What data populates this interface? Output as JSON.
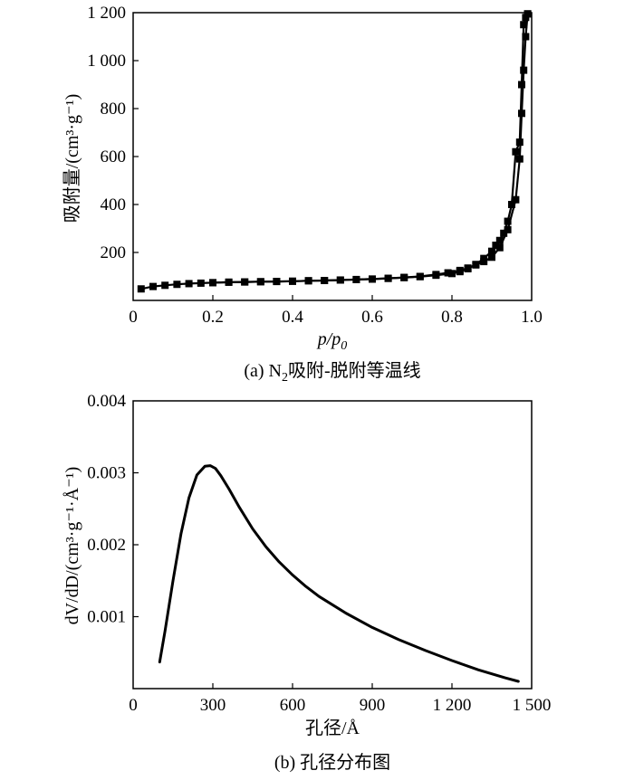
{
  "chart_data": [
    {
      "type": "line",
      "caption_prefix": "(a) N",
      "caption_sub": "2",
      "caption_suffix": "吸附-脱附等温线",
      "xlabel": "p/p",
      "xlabel_sub": "0",
      "ylabel": "吸附量/(cm³·g⁻¹)",
      "xlim": [
        0,
        1.0
      ],
      "ylim": [
        0,
        1200
      ],
      "x_ticks": [
        "0",
        "0.2",
        "0.4",
        "0.6",
        "0.8",
        "1.0"
      ],
      "y_ticks": [
        "200",
        "400",
        "600",
        "800",
        "1 000",
        "1 200"
      ],
      "grid": false,
      "series": [
        {
          "x": [
            0.02,
            0.05,
            0.08,
            0.11,
            0.14,
            0.17,
            0.2,
            0.24,
            0.28,
            0.32,
            0.36,
            0.4,
            0.44,
            0.48,
            0.52,
            0.56,
            0.6,
            0.64,
            0.68,
            0.72,
            0.76,
            0.79,
            0.82,
            0.84,
            0.86,
            0.88,
            0.9,
            0.92,
            0.94,
            0.96,
            0.97,
            0.975,
            0.98,
            0.985,
            0.99
          ],
          "y": [
            48,
            58,
            63,
            67,
            70,
            72,
            74,
            76,
            77,
            78,
            79,
            80,
            82,
            83,
            85,
            87,
            89,
            92,
            96,
            100,
            108,
            115,
            125,
            135,
            148,
            162,
            180,
            220,
            295,
            420,
            590,
            780,
            960,
            1100,
            1195
          ]
        },
        {
          "x": [
            0.99,
            0.985,
            0.98,
            0.975,
            0.97,
            0.96,
            0.95,
            0.94,
            0.93,
            0.92,
            0.91,
            0.9,
            0.88,
            0.86,
            0.84,
            0.82,
            0.8,
            0.76,
            0.72,
            0.68,
            0.64,
            0.6,
            0.56,
            0.52,
            0.48,
            0.44,
            0.4,
            0.36,
            0.32,
            0.28,
            0.24,
            0.2
          ],
          "y": [
            1195,
            1180,
            1150,
            900,
            660,
            620,
            400,
            330,
            280,
            250,
            230,
            205,
            175,
            150,
            132,
            120,
            112,
            105,
            99,
            95,
            92,
            89,
            87,
            85,
            83,
            82,
            80,
            79,
            78,
            77,
            76,
            74
          ]
        }
      ]
    },
    {
      "type": "line",
      "caption": "(b) 孔径分布图",
      "xlabel": "孔径/Å",
      "ylabel": "dV/dD/(cm³·g⁻¹·Å⁻¹)",
      "xlim": [
        0,
        1500
      ],
      "ylim": [
        0,
        0.004
      ],
      "x_ticks": [
        "0",
        "300",
        "600",
        "900",
        "1 200",
        "1 500"
      ],
      "y_ticks": [
        "0.001",
        "0.002",
        "0.003",
        "0.004"
      ],
      "grid": false,
      "series": [
        {
          "x": [
            100,
            120,
            150,
            180,
            210,
            240,
            270,
            290,
            310,
            330,
            360,
            400,
            450,
            500,
            550,
            600,
            650,
            700,
            800,
            900,
            1000,
            1100,
            1200,
            1300,
            1400,
            1450
          ],
          "y": [
            0.00037,
            0.0008,
            0.0015,
            0.00215,
            0.00265,
            0.00297,
            0.00309,
            0.0031,
            0.00306,
            0.00296,
            0.00278,
            0.00252,
            0.00222,
            0.00197,
            0.00176,
            0.00158,
            0.00142,
            0.00128,
            0.00105,
            0.00085,
            0.00068,
            0.00053,
            0.00039,
            0.00026,
            0.00015,
            0.0001
          ]
        }
      ]
    }
  ]
}
